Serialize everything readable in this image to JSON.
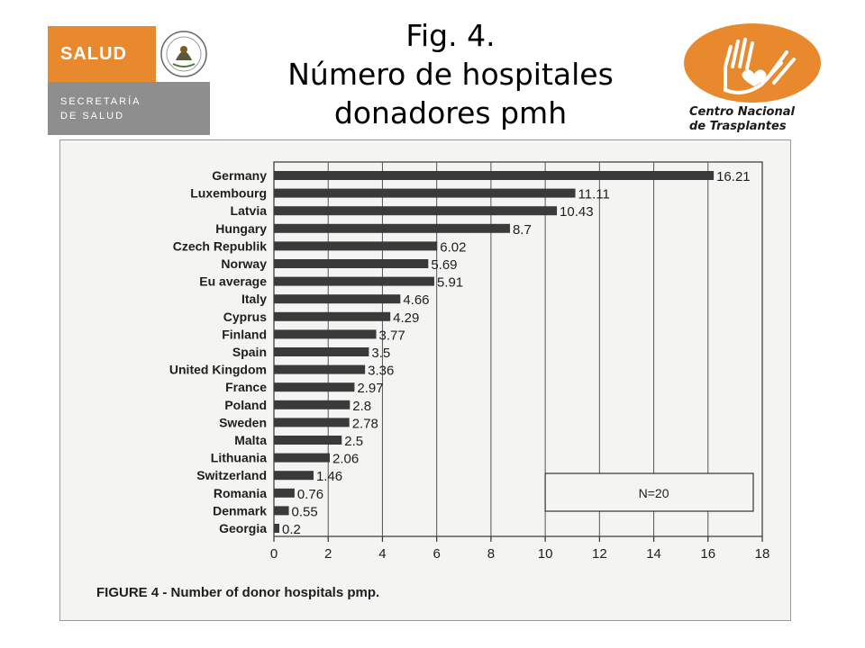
{
  "slide": {
    "title_lines": [
      "Fig. 4.",
      "Número de hospitales",
      "donadores pmh"
    ]
  },
  "logos": {
    "salud": {
      "main": "SALUD",
      "sub_line1": "SECRETARÍA",
      "sub_line2": "DE SALUD",
      "color": "#e8892e"
    },
    "cnt": {
      "line1": "Centro Nacional",
      "line2": "de Trasplantes",
      "color": "#e8892e"
    }
  },
  "figure": {
    "caption": "FIGURE 4 - Number of donor hospitals pmp.",
    "note": "N=20"
  },
  "chart_data": {
    "type": "bar",
    "orientation": "horizontal",
    "categories": [
      "Germany",
      "Luxembourg",
      "Latvia",
      "Hungary",
      "Czech Republik",
      "Norway",
      "Eu average",
      "Italy",
      "Cyprus",
      "Finland",
      "Spain",
      "United Kingdom",
      "France",
      "Poland",
      "Sweden",
      "Malta",
      "Lithuania",
      "Switzerland",
      "Romania",
      "Denmark",
      "Georgia"
    ],
    "values": [
      16.21,
      11.11,
      10.43,
      8.7,
      6.02,
      5.69,
      5.91,
      4.66,
      4.29,
      3.77,
      3.5,
      3.36,
      2.97,
      2.8,
      2.78,
      2.5,
      2.06,
      1.46,
      0.76,
      0.55,
      0.2
    ],
    "value_labels": [
      "16.21",
      "11.11",
      "10.43",
      "8.7",
      "6.02",
      "5.69",
      "5.91",
      "4.66",
      "4.29",
      "3.77",
      "3.5",
      "3.36",
      "2.97",
      "2.8",
      "2.78",
      "2.5",
      "2.06",
      "1.46",
      "0.76",
      "0.55",
      "0.2"
    ],
    "xlim": [
      0,
      18
    ],
    "xticks": [
      "0",
      "2",
      "4",
      "6",
      "8",
      "10",
      "12",
      "14",
      "16",
      "18"
    ],
    "grid": true,
    "bar_color": "#3a3a3a"
  }
}
